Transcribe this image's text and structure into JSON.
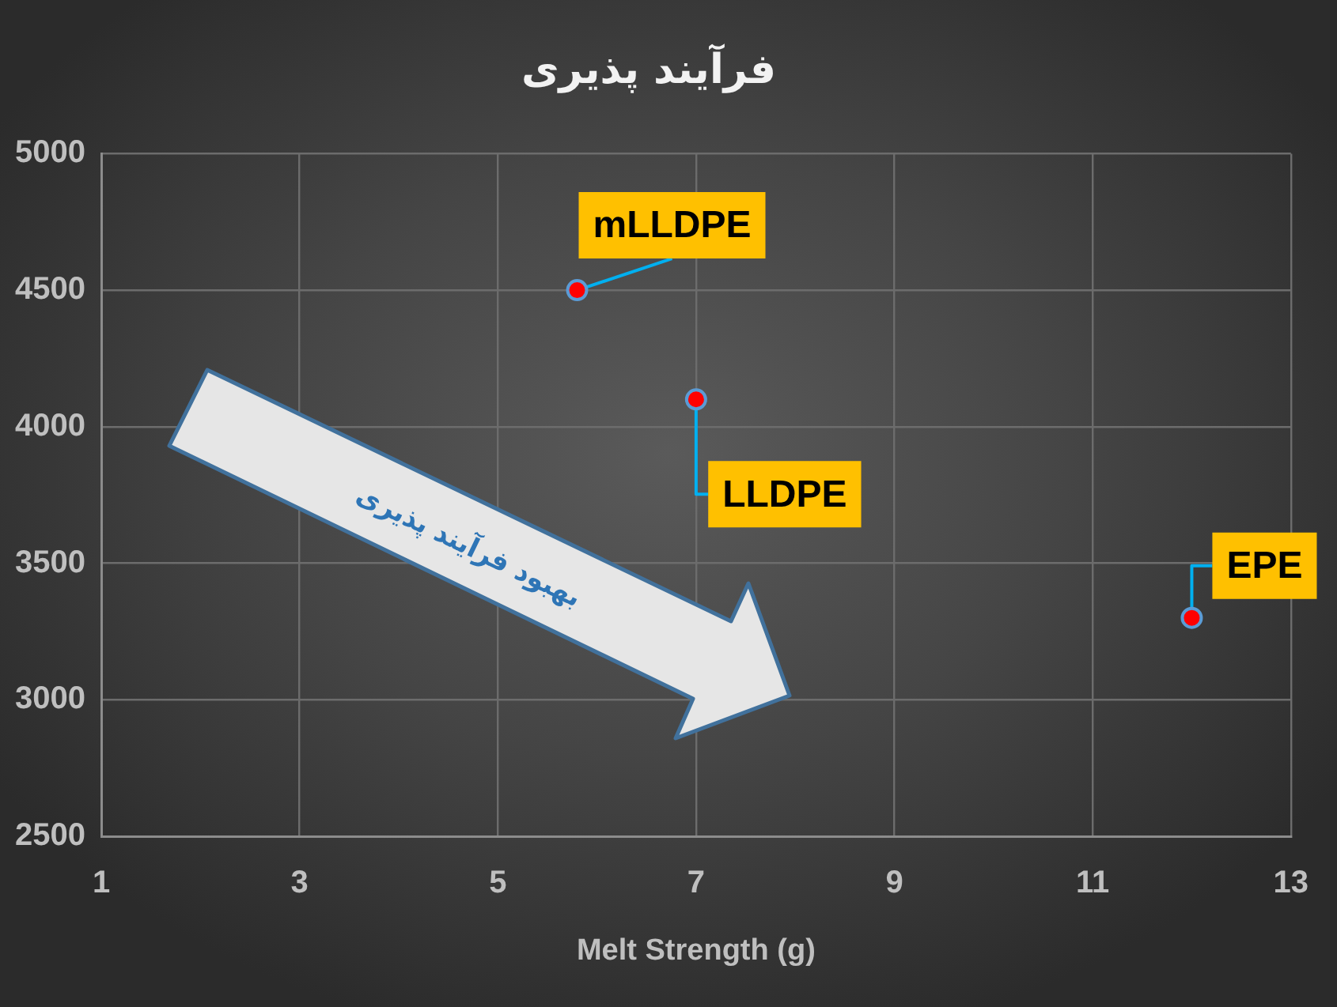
{
  "chart_data": {
    "type": "scatter",
    "title": "فرآیند پذیری",
    "xlabel": "Melt Strength (g)",
    "x": [
      5.8,
      7,
      12
    ],
    "values": [
      4500,
      4100,
      3300
    ],
    "color": "#ff0000",
    "marker": "circle",
    "xlim": [
      1,
      13
    ],
    "xticks": [
      1,
      3,
      5,
      7,
      9,
      11,
      13
    ],
    "ylim": [
      2500,
      5000
    ],
    "yticks": [
      2500,
      3000,
      3500,
      4000,
      4500,
      5000
    ],
    "grid": true,
    "annotations": [
      {
        "text": "mLLDPE",
        "x": 5.8,
        "y": 4500
      },
      {
        "text": "LLDPE",
        "x": 7,
        "y": 4100
      },
      {
        "text": "EPE",
        "x": 12,
        "y": 3300
      },
      "بهبود فرآیند پذیری"
    ]
  }
}
